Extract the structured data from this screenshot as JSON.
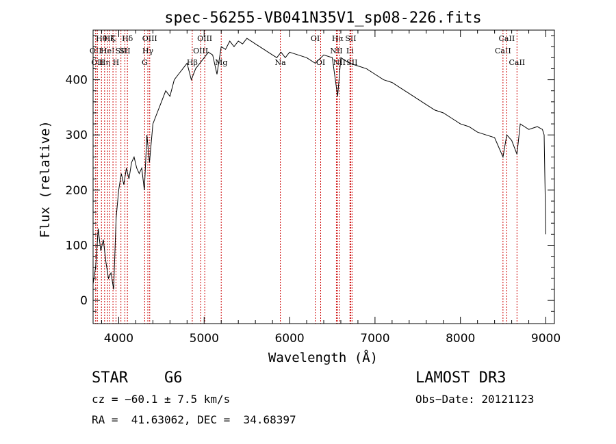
{
  "chart_data": {
    "type": "line",
    "title": "spec-56255-VB041N35V1_sp08-226.fits",
    "xlabel": "Wavelength (Å)",
    "ylabel": "Flux (relative)",
    "xlim": [
      3700,
      9100
    ],
    "ylim": [
      -42,
      490
    ],
    "xticks": [
      4000,
      5000,
      6000,
      7000,
      8000,
      9000
    ],
    "yticks": [
      0,
      100,
      200,
      300,
      400
    ],
    "series": [
      {
        "name": "spectrum",
        "x": [
          3700,
          3730,
          3760,
          3790,
          3820,
          3850,
          3880,
          3910,
          3940,
          3970,
          4000,
          4030,
          4060,
          4090,
          4120,
          4150,
          4180,
          4210,
          4240,
          4270,
          4300,
          4330,
          4360,
          4400,
          4450,
          4500,
          4550,
          4600,
          4650,
          4700,
          4750,
          4800,
          4850,
          4900,
          4950,
          5000,
          5050,
          5100,
          5150,
          5200,
          5250,
          5300,
          5350,
          5400,
          5450,
          5500,
          5550,
          5600,
          5650,
          5700,
          5750,
          5800,
          5850,
          5900,
          5950,
          6000,
          6100,
          6200,
          6300,
          6400,
          6500,
          6563,
          6600,
          6700,
          6800,
          6900,
          7000,
          7100,
          7200,
          7300,
          7400,
          7500,
          7600,
          7700,
          7800,
          7900,
          8000,
          8100,
          8200,
          8300,
          8400,
          8498,
          8542,
          8600,
          8662,
          8700,
          8800,
          8900,
          8960,
          8980,
          9000
        ],
        "y": [
          30,
          60,
          130,
          90,
          110,
          70,
          40,
          50,
          20,
          150,
          200,
          230,
          210,
          240,
          220,
          250,
          260,
          240,
          230,
          240,
          200,
          300,
          250,
          320,
          340,
          360,
          380,
          370,
          400,
          410,
          420,
          430,
          400,
          420,
          430,
          440,
          450,
          445,
          410,
          460,
          455,
          470,
          460,
          470,
          465,
          475,
          470,
          465,
          460,
          455,
          450,
          445,
          440,
          450,
          440,
          450,
          445,
          440,
          430,
          445,
          440,
          370,
          440,
          430,
          425,
          420,
          410,
          400,
          395,
          385,
          375,
          365,
          355,
          345,
          340,
          330,
          320,
          315,
          305,
          300,
          295,
          260,
          300,
          290,
          265,
          320,
          310,
          315,
          310,
          300,
          120
        ]
      }
    ],
    "vlines": [
      {
        "wave": 3730,
        "label": "OII",
        "row": 2
      },
      {
        "wave": 3750,
        "label": "OII",
        "row": 3
      },
      {
        "wave": 3798,
        "label": "Hθ",
        "row": 1
      },
      {
        "wave": 3835,
        "label": "Hη",
        "row": 3
      },
      {
        "wave": 3870,
        "label": "HeI",
        "row": 2
      },
      {
        "wave": 3889,
        "label": "Hζ",
        "row": 1
      },
      {
        "wave": 3933,
        "label": "K",
        "row": 1
      },
      {
        "wave": 3968,
        "label": "H",
        "row": 3
      },
      {
        "wave": 4026,
        "label": "SII",
        "row": 2
      },
      {
        "wave": 4072,
        "label": "SII",
        "row": 2
      },
      {
        "wave": 4102,
        "label": "Hδ",
        "row": 1
      },
      {
        "wave": 4304,
        "label": "G",
        "row": 3
      },
      {
        "wave": 4341,
        "label": "Hγ",
        "row": 2
      },
      {
        "wave": 4363,
        "label": "OIII",
        "row": 1
      },
      {
        "wave": 4861,
        "label": "Hβ",
        "row": 3
      },
      {
        "wave": 4959,
        "label": "OIII",
        "row": 2
      },
      {
        "wave": 5007,
        "label": "OIII",
        "row": 1
      },
      {
        "wave": 5200,
        "label": "Mg",
        "row": 3
      },
      {
        "wave": 5892,
        "label": "Na",
        "row": 3
      },
      {
        "wave": 6300,
        "label": "OI",
        "row": 1
      },
      {
        "wave": 6364,
        "label": "OI",
        "row": 3
      },
      {
        "wave": 6548,
        "label": "NII",
        "row": 2
      },
      {
        "wave": 6563,
        "label": "Hα",
        "row": 1
      },
      {
        "wave": 6583,
        "label": "NII",
        "row": 3
      },
      {
        "wave": 6707,
        "label": "Li",
        "row": 2
      },
      {
        "wave": 6716,
        "label": "SII",
        "row": 1
      },
      {
        "wave": 6731,
        "label": "SII",
        "row": 3
      },
      {
        "wave": 8498,
        "label": "CaII",
        "row": 2
      },
      {
        "wave": 8542,
        "label": "CaII",
        "row": 1
      },
      {
        "wave": 8662,
        "label": "CaII",
        "row": 3
      }
    ]
  },
  "info": {
    "object_class": "STAR",
    "subclass": "G6",
    "survey": "LAMOST DR3",
    "cz": "cz = −60.1 ± 7.5 km/s",
    "obs_date": "Obs−Date: 20121123",
    "coords": "RA =  41.63062, DEC =  34.68397"
  },
  "colors": {
    "vline": "#cc0000",
    "spectrum": "#000000",
    "axes": "#000000"
  }
}
